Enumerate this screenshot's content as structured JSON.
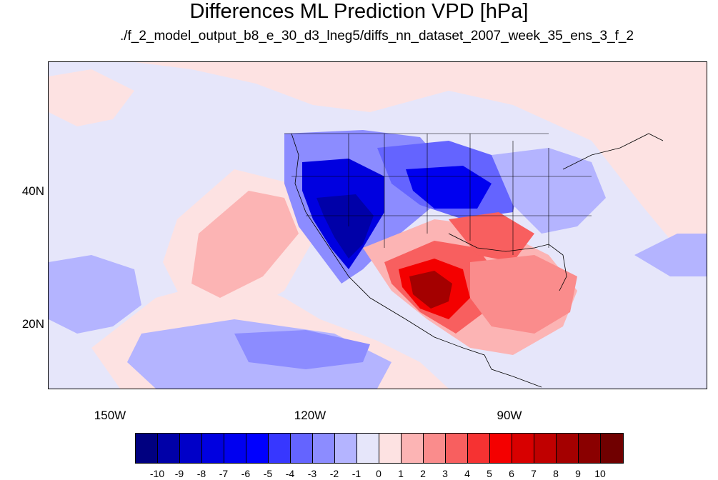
{
  "title": "Differences ML Prediction VPD [hPa]",
  "subtitle": "./f_2_model_output_b8_e_30_d3_lneg5/diffs_nn_dataset_2007_week_35_ens_3_f_2",
  "map": {
    "lat_labels": [
      "40N",
      "20N"
    ],
    "lon_labels": [
      "150W",
      "120W",
      "90W"
    ]
  },
  "colorbar": {
    "labels": [
      "-10",
      "-9",
      "-8",
      "-7",
      "-6",
      "-5",
      "-4",
      "-3",
      "-2",
      "-1",
      "0",
      "1",
      "2",
      "3",
      "4",
      "5",
      "6",
      "7",
      "8",
      "9",
      "10"
    ],
    "colors": [
      "#000080",
      "#0000a8",
      "#0000c8",
      "#0000e0",
      "#0000f0",
      "#0000ff",
      "#3737ff",
      "#6464ff",
      "#8c8cff",
      "#b4b4ff",
      "#e6e6fa",
      "#fde2e2",
      "#fcb4b4",
      "#fa8c8c",
      "#f85f5f",
      "#f63232",
      "#f40000",
      "#d80000",
      "#c00000",
      "#a40000",
      "#8a0000",
      "#700000"
    ]
  }
}
